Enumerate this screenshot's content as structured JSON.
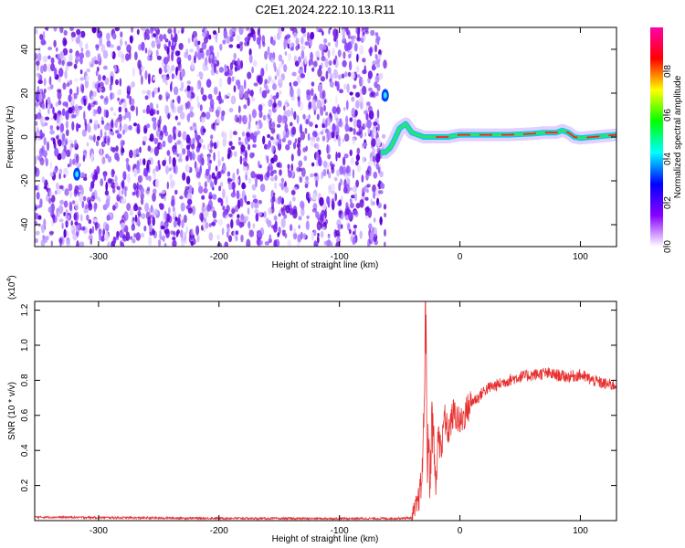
{
  "title": "C2E1.2024.222.10.13.R11",
  "chart_data": [
    {
      "type": "heatmap",
      "title": "C2E1.2024.222.10.13.R11",
      "xlabel": "Height of straight line (km)",
      "ylabel": "Frequency (Hz)",
      "xlim": [
        -353,
        130
      ],
      "ylim": [
        -50,
        50
      ],
      "xticks": [
        -300,
        -200,
        -100,
        0,
        100
      ],
      "yticks": [
        -40,
        -20,
        0,
        20,
        40
      ],
      "noise_region_x": [
        -353,
        -62
      ],
      "ridge": {
        "x": [
          -66,
          -62,
          -58,
          -55,
          -50,
          -45,
          -40,
          -35,
          -30,
          -20,
          -10,
          0,
          20,
          40,
          60,
          70,
          80,
          85,
          90,
          95,
          100,
          110,
          120,
          130
        ],
        "y": [
          -7,
          -7,
          -5,
          -2,
          4,
          6,
          2,
          1,
          0,
          0,
          0,
          1,
          1,
          1,
          1.5,
          2,
          2,
          3,
          2,
          0,
          -0.5,
          0,
          0.5,
          1
        ]
      },
      "bright_spots": [
        {
          "x": -62,
          "y": 19
        },
        {
          "x": -318,
          "y": -17
        }
      ],
      "colorbar": {
        "label": "Normalized spectral amplitude",
        "range": [
          0,
          1
        ],
        "ticks": [
          0.0,
          0.2,
          0.4,
          0.6,
          0.8
        ],
        "stops": [
          "#ffffff",
          "#8800ff",
          "#0000ff",
          "#00ffff",
          "#00ff00",
          "#ffff00",
          "#ff0000",
          "#ff00aa"
        ]
      }
    },
    {
      "type": "line",
      "xlabel": "Height of straight line (km)",
      "ylabel": "SNR (10 * v/v)",
      "scale_label": "(x10",
      "scale_exponent": "4",
      "xlim": [
        -353,
        130
      ],
      "ylim": [
        0,
        1.25
      ],
      "xticks": [
        -300,
        -200,
        -100,
        0,
        100
      ],
      "yticks": [
        0.2,
        0.4,
        0.6,
        0.8,
        1.0,
        1.2
      ],
      "ytick_labels": [
        "0.2",
        "0.4",
        "0.6",
        "0.8",
        "1.0",
        "1.2"
      ],
      "color": "#e83030",
      "series": [
        {
          "x": [
            -353,
            -250,
            -150,
            -60,
            -40,
            -35,
            -32,
            -30,
            -29,
            -28.5,
            -28,
            -27,
            -26,
            -25,
            -23,
            -20,
            -17,
            -15,
            -13,
            -10,
            -5,
            0,
            5,
            10,
            15,
            20,
            25,
            30,
            40,
            50,
            60,
            70,
            80,
            90,
            100,
            110,
            120,
            130
          ],
          "y": [
            0.02,
            0.015,
            0.012,
            0.012,
            0.015,
            0.1,
            0.2,
            0.5,
            1.1,
            1.3,
            0.9,
            0.3,
            0.5,
            0.2,
            0.6,
            0.2,
            0.55,
            0.4,
            0.6,
            0.5,
            0.62,
            0.55,
            0.62,
            0.68,
            0.7,
            0.74,
            0.76,
            0.77,
            0.8,
            0.82,
            0.83,
            0.84,
            0.83,
            0.82,
            0.83,
            0.8,
            0.78,
            0.77
          ]
        }
      ]
    }
  ]
}
